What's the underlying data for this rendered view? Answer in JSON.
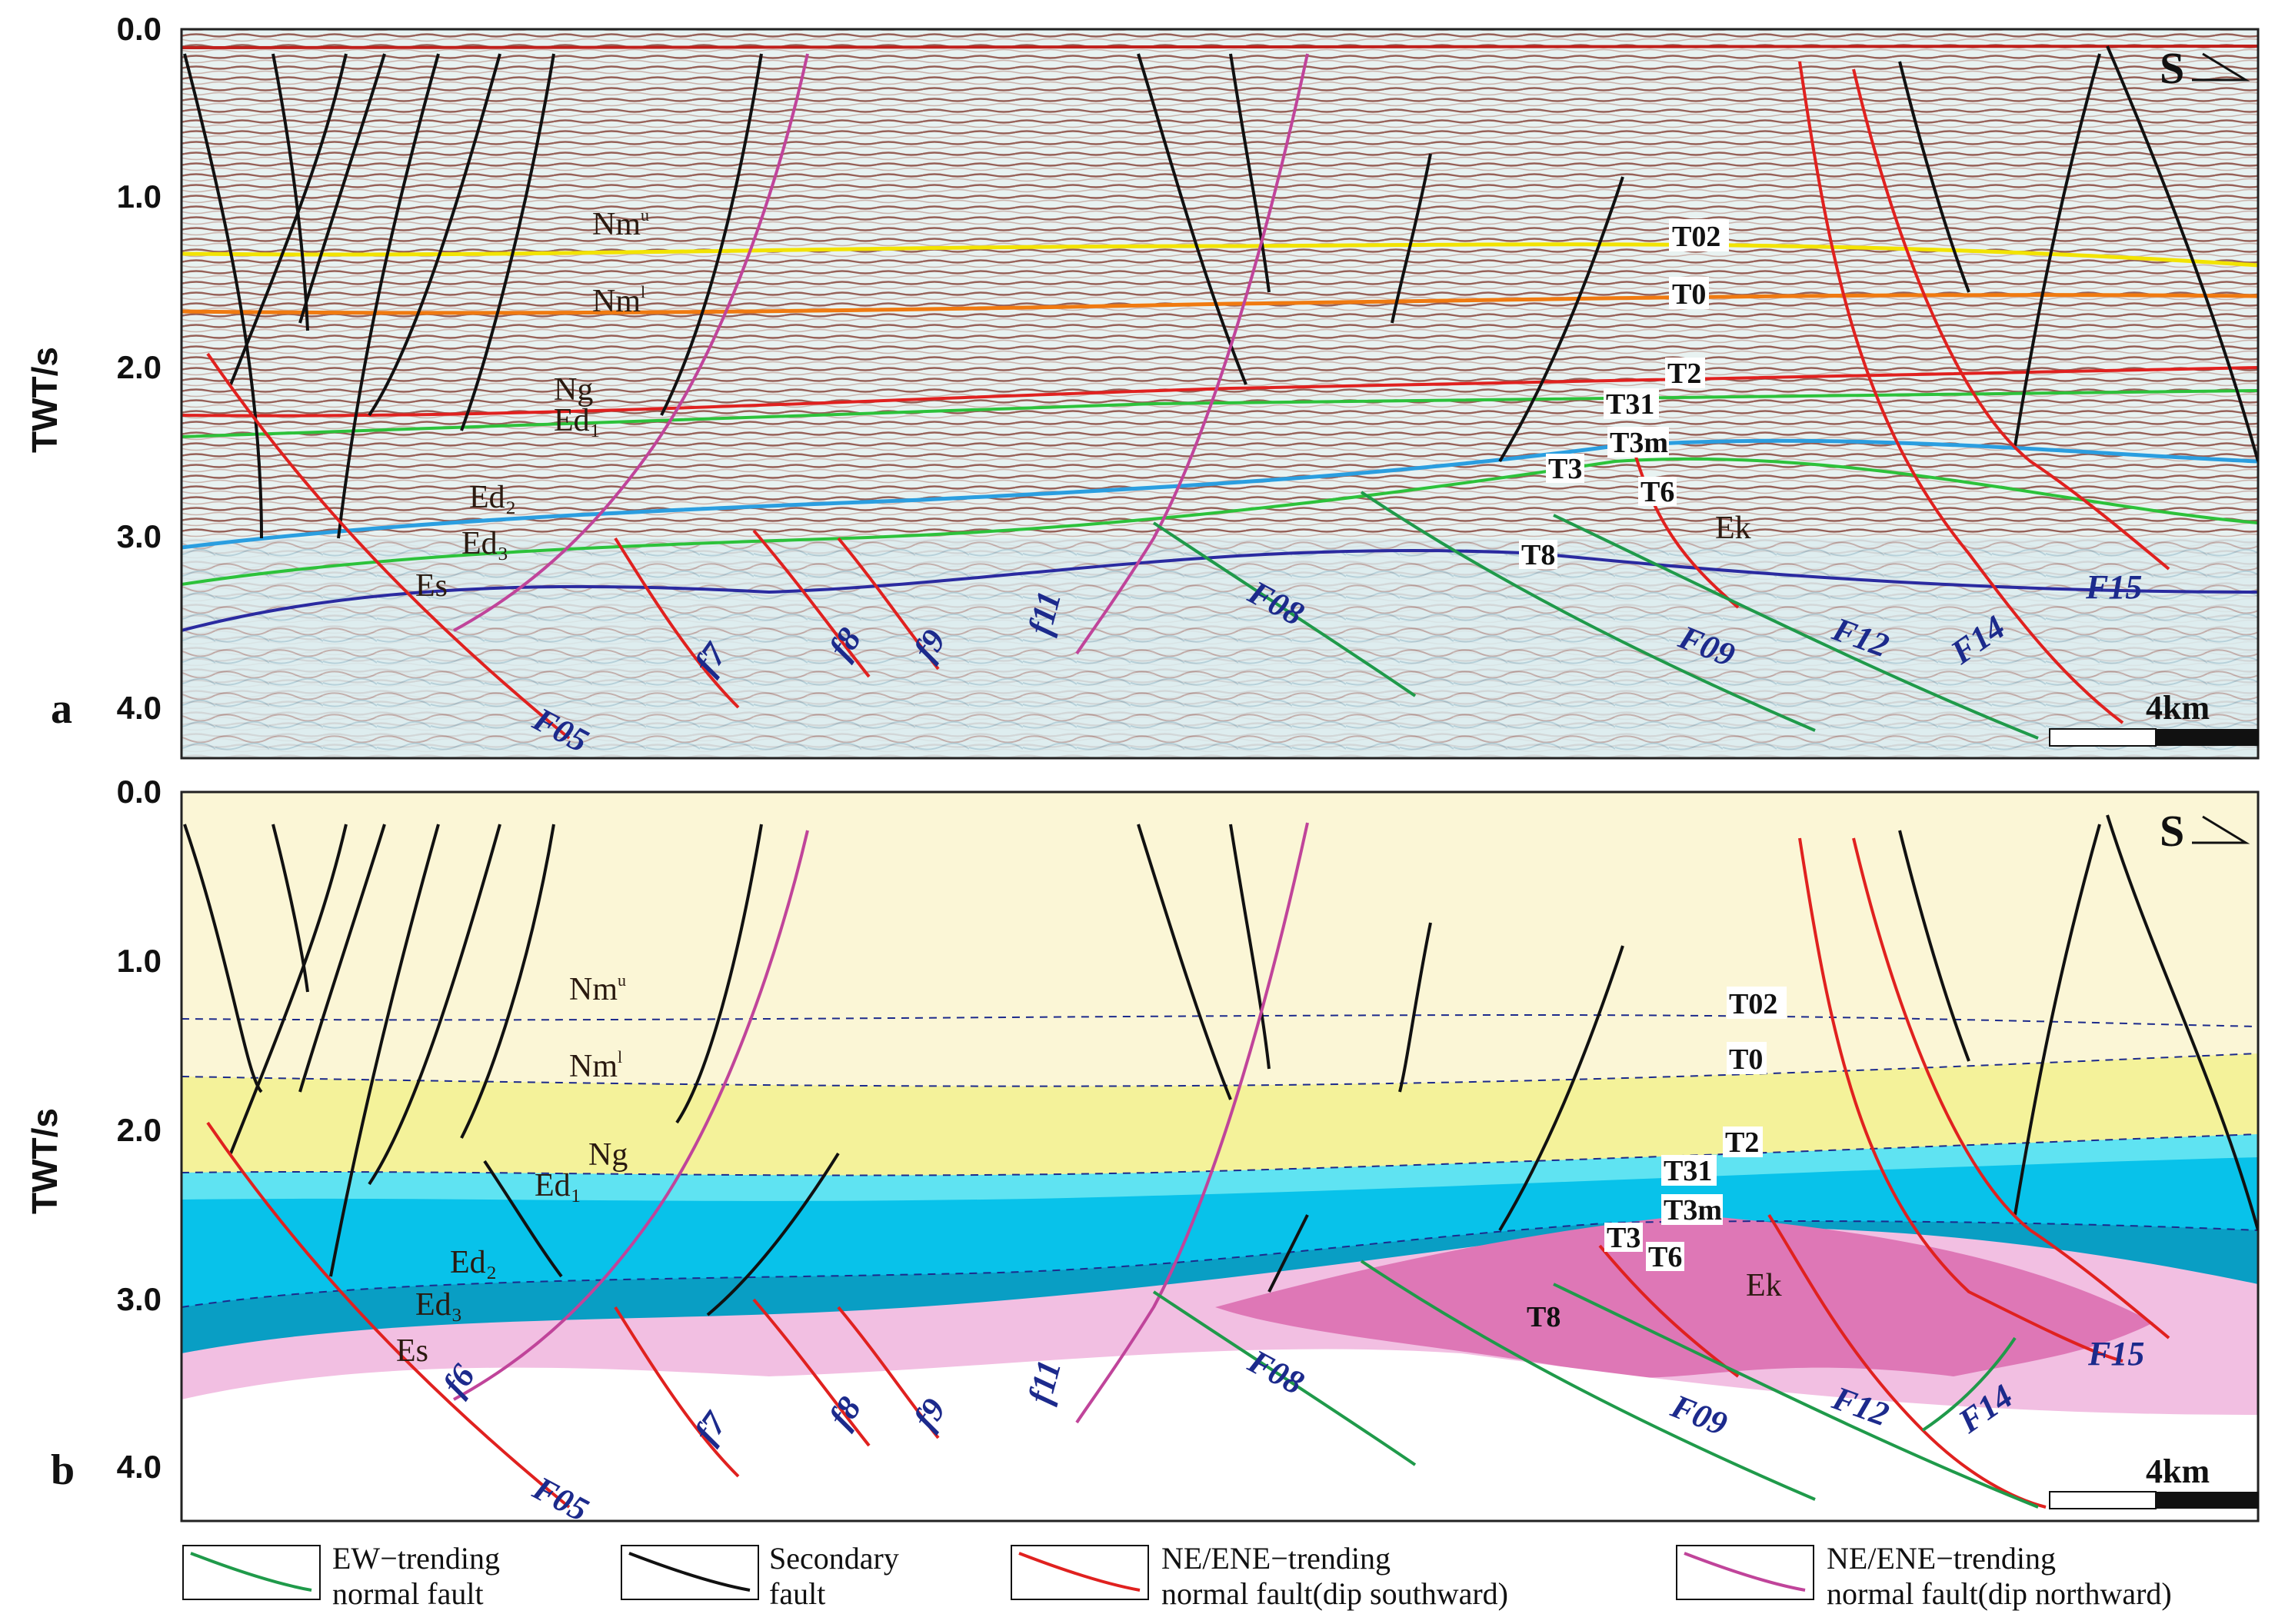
{
  "panels": [
    {
      "id": "a",
      "label": "a",
      "kind": "seismic"
    },
    {
      "id": "b",
      "label": "b",
      "kind": "interpretation"
    }
  ],
  "axis": {
    "ylabel": "TWT/s",
    "ticks": [
      "0.0",
      "1.0",
      "2.0",
      "3.0",
      "4.0"
    ]
  },
  "north_arrow": "S",
  "scale_bar": "4km",
  "horizons": {
    "T02": "T02",
    "T0": "T0",
    "T2": "T2",
    "T31": "T31",
    "T3m": "T3m",
    "T3": "T3",
    "T6": "T6",
    "T8": "T8"
  },
  "formations": {
    "Nm_u_base": "Nm",
    "Nm_u_sup": "u",
    "Nm_l_base": "Nm",
    "Nm_l_sup": "l",
    "Ng": "Ng",
    "Ed1": "Ed₁",
    "Ed2": "Ed₂",
    "Ed3": "Ed₃",
    "Es": "Es",
    "Ek": "Ek"
  },
  "faults": {
    "F05": "F05",
    "f6": "f6",
    "f7": "f7",
    "f8": "f8",
    "f9": "f9",
    "f11": "f11",
    "F08": "F08",
    "F09": "F09",
    "F12": "F12",
    "F14": "F14",
    "F15": "F15"
  },
  "legend": [
    {
      "line1": "EW−trending",
      "line2": "normal fault",
      "color": "#1f9a4a"
    },
    {
      "line1": "Secondary",
      "line2": "fault",
      "color": "#111111"
    },
    {
      "line1": "NE/ENE−trending",
      "line2": "normal  fault(dip southward)",
      "color": "#e0211f"
    },
    {
      "line1": "NE/ENE−trending",
      "line2": "normal  fault(dip northward)",
      "color": "#c0449a"
    }
  ],
  "colors": {
    "nm": "#fbf6d6",
    "ng": "#f4f29a",
    "ed1": "#5fe3f2",
    "ed2": "#08c2ea",
    "ed3": "#099ec4",
    "es": "#f2bfe2",
    "ek": "#de77b6",
    "ew_fault": "#1f9a4a",
    "secondary_fault": "#111111",
    "ne_south": "#e0211f",
    "ne_north": "#c0449a",
    "t02": "#f2e300",
    "t0": "#f07a10",
    "t2": "#e0211f",
    "t31": "#2cc23a",
    "t3": "#2a9ee0",
    "t8": "#2a2aa0"
  }
}
